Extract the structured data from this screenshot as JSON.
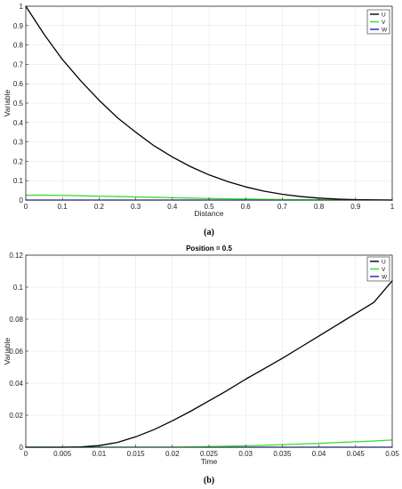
{
  "chart_data": [
    {
      "type": "line",
      "panel": "a",
      "caption": "(a)",
      "title": "",
      "xlabel": "Distance",
      "ylabel": "Variable",
      "xlim": [
        0,
        1
      ],
      "ylim": [
        0,
        1
      ],
      "xticks": [
        "0",
        "0.1",
        "0.2",
        "0.3",
        "0.4",
        "0.5",
        "0.6",
        "0.7",
        "0.8",
        "0.9",
        "1"
      ],
      "yticks": [
        "0",
        "0.1",
        "0.2",
        "0.3",
        "0.4",
        "0.5",
        "0.6",
        "0.7",
        "0.8",
        "0.9",
        "1"
      ],
      "grid": true,
      "legend_position": "top-right",
      "x": [
        0,
        0.05,
        0.1,
        0.15,
        0.2,
        0.25,
        0.3,
        0.35,
        0.4,
        0.45,
        0.5,
        0.55,
        0.6,
        0.65,
        0.7,
        0.75,
        0.8,
        0.85,
        0.9,
        0.95,
        1.0
      ],
      "series": [
        {
          "name": "U",
          "color": "#000000",
          "values": [
            1.0,
            0.855,
            0.725,
            0.615,
            0.515,
            0.425,
            0.35,
            0.28,
            0.222,
            0.172,
            0.13,
            0.096,
            0.068,
            0.046,
            0.03,
            0.018,
            0.01,
            0.005,
            0.002,
            0.001,
            0.0
          ]
        },
        {
          "name": "V",
          "color": "#33dd33",
          "values": [
            0.025,
            0.025,
            0.024,
            0.022,
            0.02,
            0.018,
            0.016,
            0.014,
            0.012,
            0.01,
            0.008,
            0.007,
            0.005,
            0.004,
            0.003,
            0.002,
            0.002,
            0.001,
            0.001,
            0.0,
            0.0
          ]
        },
        {
          "name": "W",
          "color": "#1c1cc8",
          "values": [
            0.0,
            0.0,
            0.0,
            0.0,
            0.0,
            0.0,
            0.0,
            0.0,
            0.0,
            0.0,
            0.0,
            0.0,
            0.0,
            0.0,
            0.0,
            0.0,
            0.0,
            0.0,
            0.0,
            0.0,
            0.0
          ]
        }
      ]
    },
    {
      "type": "line",
      "panel": "b",
      "caption": "(b)",
      "title": "Position = 0.5",
      "xlabel": "Time",
      "ylabel": "Variable",
      "xlim": [
        0,
        0.05
      ],
      "ylim": [
        0,
        0.12
      ],
      "xticks": [
        "0",
        "0.005",
        "0.01",
        "0.015",
        "0.02",
        "0.025",
        "0.03",
        "0.035",
        "0.04",
        "0.045",
        "0.05"
      ],
      "yticks": [
        "0",
        "0.02",
        "0.04",
        "0.06",
        "0.08",
        "0.1",
        "0.12"
      ],
      "grid": true,
      "legend_position": "top-right",
      "x": [
        0,
        0.0025,
        0.005,
        0.0075,
        0.01,
        0.0125,
        0.015,
        0.0175,
        0.02,
        0.0225,
        0.025,
        0.0275,
        0.03,
        0.0325,
        0.035,
        0.0375,
        0.04,
        0.0425,
        0.045,
        0.0475,
        0.05
      ],
      "series": [
        {
          "name": "U",
          "color": "#000000",
          "values": [
            0,
            0,
            0,
            0.0002,
            0.001,
            0.003,
            0.0065,
            0.011,
            0.0165,
            0.0225,
            0.029,
            0.0355,
            0.0425,
            0.049,
            0.0555,
            0.0625,
            0.0695,
            0.0765,
            0.0835,
            0.0905,
            0.104
          ]
        },
        {
          "name": "V",
          "color": "#33dd33",
          "values": [
            0,
            0,
            0,
            0,
            0,
            0,
            0,
            0,
            0,
            0.0002,
            0.0004,
            0.0006,
            0.0009,
            0.0012,
            0.0016,
            0.002,
            0.0024,
            0.0029,
            0.0034,
            0.0039,
            0.0045
          ]
        },
        {
          "name": "W",
          "color": "#1c1cc8",
          "values": [
            0,
            0,
            0,
            0,
            0,
            0,
            0,
            0,
            0,
            0,
            0,
            0,
            0,
            0,
            0,
            0,
            0,
            0,
            0,
            0,
            0
          ]
        }
      ]
    }
  ]
}
